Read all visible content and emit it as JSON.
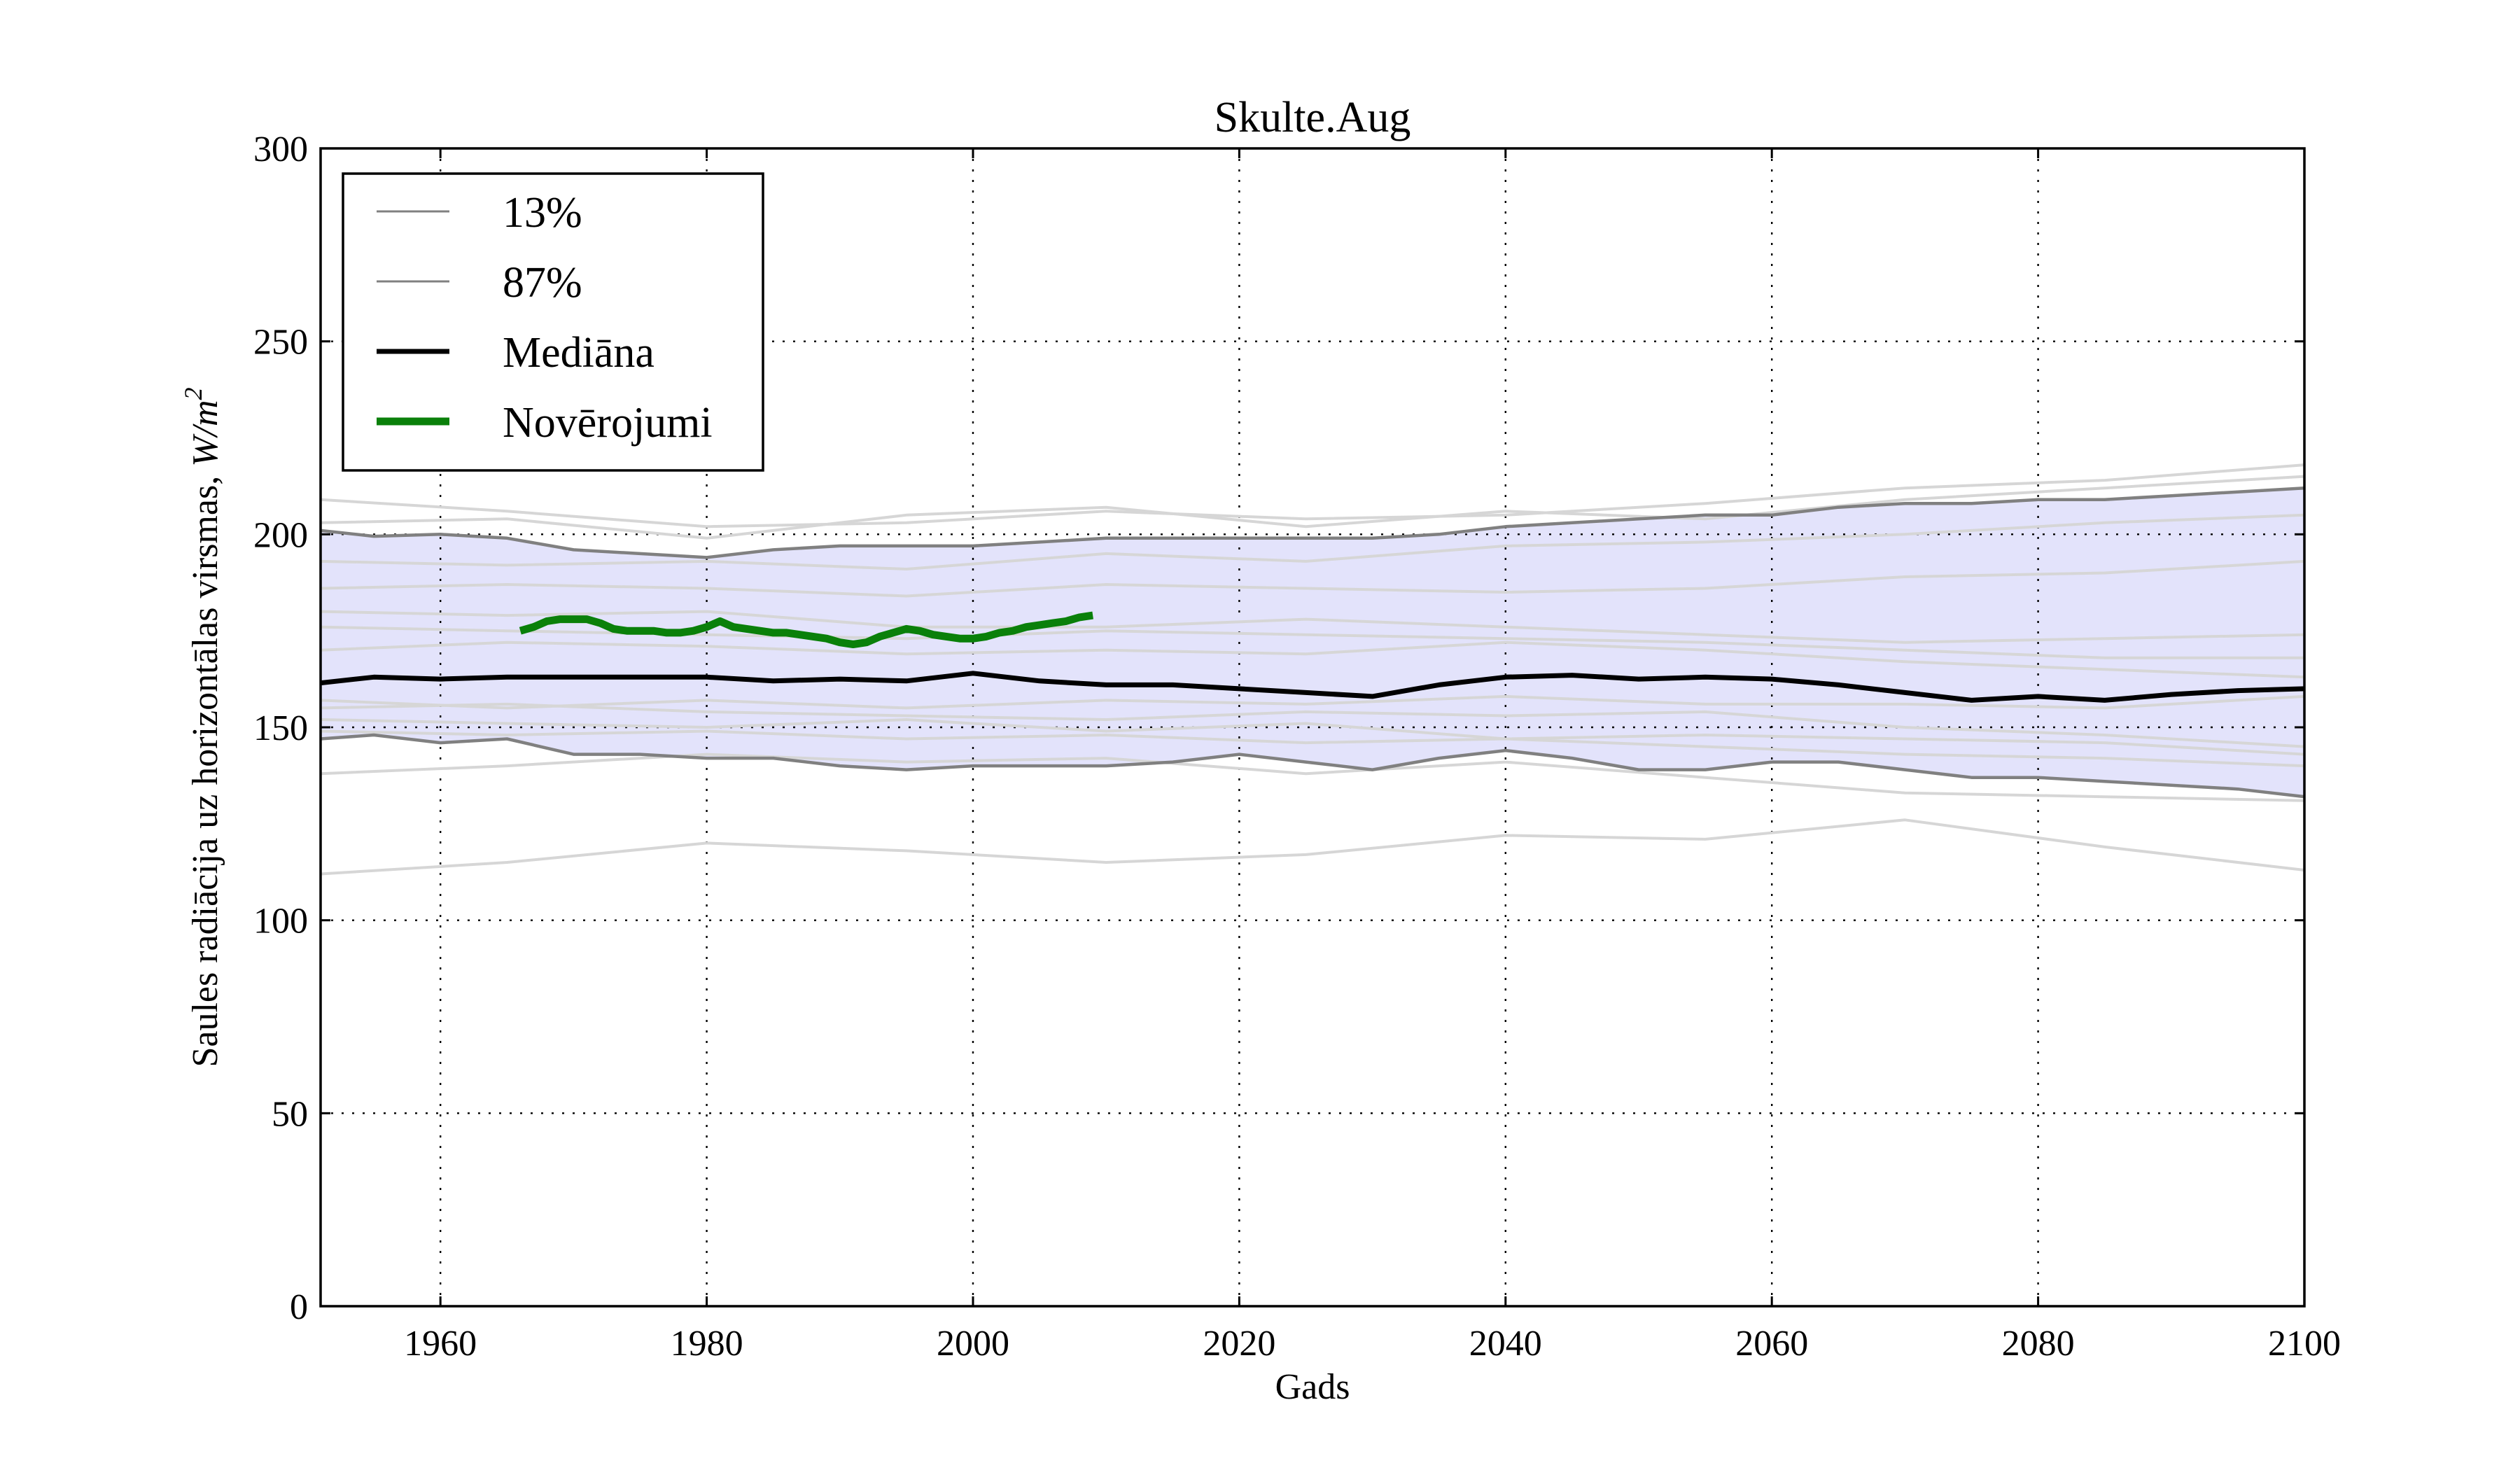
{
  "chart_data": {
    "type": "line",
    "title": "Skulte.Aug",
    "xlabel": "Gads",
    "ylabel": "Saules radiācija uz horizontālas virsmas, W/m²",
    "ylabel_text": "Saules radiācija uz horizontālas virsmas, ",
    "ylabel_unit_base": "W/m",
    "ylabel_unit_exp": "2",
    "xlim": [
      1951,
      2100
    ],
    "ylim": [
      0,
      300
    ],
    "xticks": [
      1960,
      1980,
      2000,
      2020,
      2040,
      2060,
      2080,
      2100
    ],
    "xtick_labels": [
      "1960",
      "1980",
      "2000",
      "2020",
      "2040",
      "2060",
      "2080",
      "2100"
    ],
    "yticks": [
      0,
      50,
      100,
      150,
      200,
      250,
      300
    ],
    "ytick_labels": [
      "0",
      "50",
      "100",
      "150",
      "200",
      "250",
      "300"
    ],
    "grid": true,
    "legend_position": "top-left",
    "band": {
      "description": "shaded range between 13% and 87% curves",
      "color": "#e3e3fb"
    },
    "colors": {
      "ensemble": "#d6d6d6",
      "percentile": "#808080",
      "median": "#000000",
      "observations": "#0a800a",
      "band": "#e3e3fb"
    },
    "legend": [
      {
        "label": "13%",
        "color": "#808080",
        "width": "thin"
      },
      {
        "label": "87%",
        "color": "#808080",
        "width": "thin"
      },
      {
        "label": "Mediāna",
        "color": "#000000",
        "width": "medium"
      },
      {
        "label": "Novērojumi",
        "color": "#0a800a",
        "width": "thick"
      }
    ],
    "series": [
      {
        "name": "87%",
        "color": "#808080",
        "x": [
          1951,
          1955,
          1960,
          1965,
          1970,
          1975,
          1980,
          1985,
          1990,
          1995,
          2000,
          2005,
          2010,
          2015,
          2020,
          2025,
          2030,
          2035,
          2040,
          2045,
          2050,
          2055,
          2060,
          2065,
          2070,
          2075,
          2080,
          2085,
          2090,
          2095,
          2100
        ],
        "values": [
          201,
          199.5,
          200,
          199,
          196,
          195,
          194,
          196,
          197,
          197,
          197,
          198,
          199,
          199,
          199,
          199,
          199,
          200,
          202,
          203,
          204,
          205,
          205,
          207,
          208,
          208,
          209,
          209,
          210,
          211,
          212
        ]
      },
      {
        "name": "13%",
        "color": "#808080",
        "x": [
          1951,
          1955,
          1960,
          1965,
          1970,
          1975,
          1980,
          1985,
          1990,
          1995,
          2000,
          2005,
          2010,
          2015,
          2020,
          2025,
          2030,
          2035,
          2040,
          2045,
          2050,
          2055,
          2060,
          2065,
          2070,
          2075,
          2080,
          2085,
          2090,
          2095,
          2100
        ],
        "values": [
          147,
          148,
          146,
          147,
          143,
          143,
          142,
          142,
          140,
          139,
          140,
          140,
          140,
          141,
          143,
          141,
          139,
          142,
          144,
          142,
          139,
          139,
          141,
          141,
          139,
          137,
          137,
          136,
          135,
          134,
          132
        ]
      },
      {
        "name": "Mediāna",
        "color": "#000000",
        "x": [
          1951,
          1955,
          1960,
          1965,
          1970,
          1975,
          1980,
          1985,
          1990,
          1995,
          2000,
          2005,
          2010,
          2015,
          2020,
          2025,
          2030,
          2035,
          2040,
          2045,
          2050,
          2055,
          2060,
          2065,
          2070,
          2075,
          2080,
          2085,
          2090,
          2095,
          2100
        ],
        "values": [
          161.5,
          163,
          162.5,
          163,
          163,
          163,
          163,
          162,
          162.5,
          162,
          164,
          162,
          161,
          161,
          160,
          159,
          158,
          161,
          163,
          163.5,
          162.5,
          163,
          162.5,
          161,
          159,
          157,
          158,
          157,
          158.5,
          159.5,
          160
        ]
      },
      {
        "name": "Novērojumi",
        "color": "#0a800a",
        "x": [
          1966,
          1967,
          1968,
          1969,
          1970,
          1971,
          1972,
          1973,
          1974,
          1975,
          1976,
          1977,
          1978,
          1979,
          1980,
          1981,
          1982,
          1983,
          1984,
          1985,
          1986,
          1987,
          1988,
          1989,
          1990,
          1991,
          1992,
          1993,
          1994,
          1995,
          1996,
          1997,
          1998,
          1999,
          2000,
          2001,
          2002,
          2003,
          2004,
          2005,
          2006,
          2007,
          2008,
          2009
        ],
        "values": [
          175,
          176,
          177.5,
          178,
          178,
          178,
          177,
          175.5,
          175,
          175,
          175,
          174.5,
          174.5,
          175,
          176,
          177.5,
          176,
          175.5,
          175,
          174.5,
          174.5,
          174,
          173.5,
          173,
          172,
          171.5,
          172,
          173.5,
          174.5,
          175.5,
          175,
          174,
          173.5,
          173,
          173,
          173.5,
          174.5,
          175,
          176,
          176.5,
          177,
          177.5,
          178.5,
          179
        ]
      }
    ],
    "ensemble_members": [
      {
        "x": [
          1951,
          1965,
          1980,
          1995,
          2010,
          2025,
          2040,
          2055,
          2070,
          2085,
          2100
        ],
        "values": [
          209,
          206,
          202,
          203,
          206,
          204,
          205,
          208,
          212,
          214,
          218
        ]
      },
      {
        "x": [
          1951,
          1965,
          1980,
          1995,
          2010,
          2025,
          2040,
          2055,
          2070,
          2085,
          2100
        ],
        "values": [
          203,
          204,
          199,
          205,
          207,
          202,
          206,
          204,
          209,
          212,
          215
        ]
      },
      {
        "x": [
          1951,
          1965,
          1980,
          1995,
          2010,
          2025,
          2040,
          2055,
          2070,
          2085,
          2100
        ],
        "values": [
          193,
          192,
          193,
          191,
          195,
          193,
          197,
          198,
          200,
          203,
          205
        ]
      },
      {
        "x": [
          1951,
          1965,
          1980,
          1995,
          2010,
          2025,
          2040,
          2055,
          2070,
          2085,
          2100
        ],
        "values": [
          186,
          187,
          186,
          184,
          187,
          186,
          185,
          186,
          189,
          190,
          193
        ]
      },
      {
        "x": [
          1951,
          1965,
          1980,
          1995,
          2010,
          2025,
          2040,
          2055,
          2070,
          2085,
          2100
        ],
        "values": [
          180,
          179,
          180,
          176,
          176,
          178,
          176,
          174,
          172,
          173,
          174
        ]
      },
      {
        "x": [
          1951,
          1965,
          1980,
          1995,
          2010,
          2025,
          2040,
          2055,
          2070,
          2085,
          2100
        ],
        "values": [
          176,
          175,
          174,
          173,
          175,
          174,
          173,
          172,
          170,
          168,
          168
        ]
      },
      {
        "x": [
          1951,
          1965,
          1980,
          1995,
          2010,
          2025,
          2040,
          2055,
          2070,
          2085,
          2100
        ],
        "values": [
          170,
          172,
          171,
          169,
          170,
          169,
          172,
          170,
          167,
          165,
          163
        ]
      },
      {
        "x": [
          1951,
          1965,
          1980,
          1995,
          2010,
          2025,
          2040,
          2055,
          2070,
          2085,
          2100
        ],
        "values": [
          157,
          155,
          157,
          155,
          157,
          156,
          158,
          156,
          156,
          155,
          158
        ]
      },
      {
        "x": [
          1951,
          1965,
          1980,
          1995,
          2010,
          2025,
          2040,
          2055,
          2070,
          2085,
          2100
        ],
        "values": [
          155,
          156,
          154,
          153,
          152,
          154,
          153,
          154,
          150,
          148,
          145
        ]
      },
      {
        "x": [
          1951,
          1965,
          1980,
          1995,
          2010,
          2025,
          2040,
          2055,
          2070,
          2085,
          2100
        ],
        "values": [
          152,
          151,
          150,
          152,
          149,
          151,
          147,
          148,
          147,
          146,
          143
        ]
      },
      {
        "x": [
          1951,
          1965,
          1980,
          1995,
          2010,
          2025,
          2040,
          2055,
          2070,
          2085,
          2100
        ],
        "values": [
          149,
          148,
          149,
          147,
          148,
          146,
          147,
          145,
          143,
          142,
          140
        ]
      },
      {
        "x": [
          1951,
          1965,
          1980,
          1995,
          2010,
          2025,
          2040,
          2055,
          2070,
          2085,
          2100
        ],
        "values": [
          138,
          140,
          143,
          141,
          142,
          138,
          141,
          137,
          133,
          132,
          131
        ]
      },
      {
        "x": [
          1951,
          1965,
          1980,
          1995,
          2010,
          2025,
          2040,
          2055,
          2070,
          2085,
          2100
        ],
        "values": [
          112,
          115,
          120,
          118,
          115,
          117,
          122,
          121,
          126,
          119,
          113
        ]
      }
    ]
  }
}
